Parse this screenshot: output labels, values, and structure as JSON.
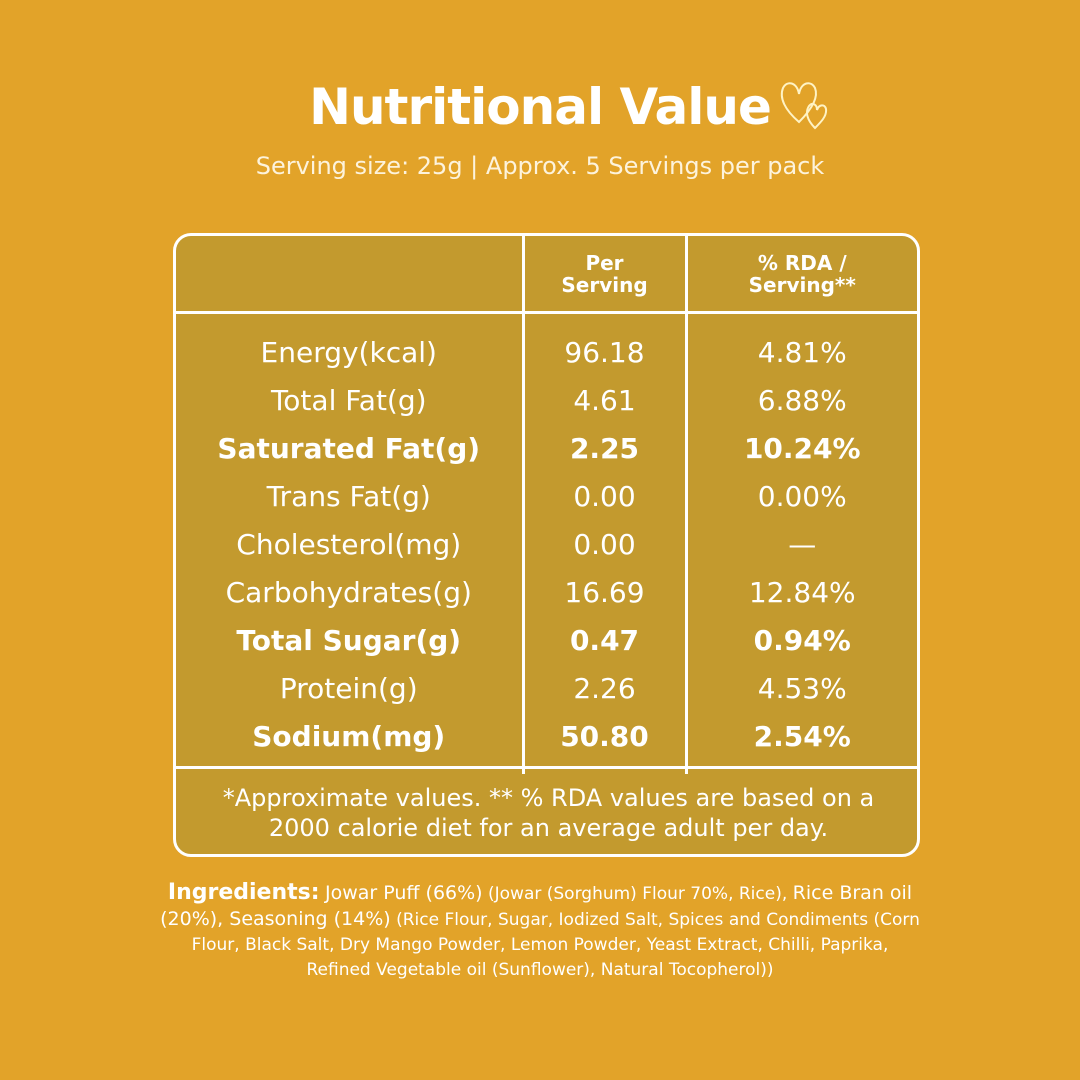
{
  "header": {
    "title": "Nutritional Value",
    "subtitle": "Serving size: 25g | Approx. 5 Servings per pack"
  },
  "table": {
    "columns": [
      "Per Serving",
      "% RDA / Serving**"
    ],
    "rows": [
      {
        "label": "Energy(kcal)",
        "per_serving": "96.18",
        "rda": "4.81%",
        "bold": false
      },
      {
        "label": "Total Fat(g)",
        "per_serving": "4.61",
        "rda": "6.88%",
        "bold": false
      },
      {
        "label": "Saturated Fat(g)",
        "per_serving": "2.25",
        "rda": "10.24%",
        "bold": true
      },
      {
        "label": "Trans Fat(g)",
        "per_serving": "0.00",
        "rda": "0.00%",
        "bold": false
      },
      {
        "label": "Cholesterol(mg)",
        "per_serving": "0.00",
        "rda": "—",
        "bold": false
      },
      {
        "label": "Carbohydrates(g)",
        "per_serving": "16.69",
        "rda": "12.84%",
        "bold": false
      },
      {
        "label": "Total Sugar(g)",
        "per_serving": "0.47",
        "rda": "0.94%",
        "bold": true
      },
      {
        "label": "Protein(g)",
        "per_serving": "2.26",
        "rda": "4.53%",
        "bold": false
      },
      {
        "label": "Sodium(mg)",
        "per_serving": "50.80",
        "rda": "2.54%",
        "bold": true
      }
    ],
    "footnote": "*Approximate values. ** % RDA values are based on a 2000 calorie diet for an average adult per day."
  },
  "ingredients": {
    "label": "Ingredients:",
    "parts": [
      {
        "text": "Jowar Puff (66%)",
        "size": "large"
      },
      {
        "text": "(Jowar (Sorghum) Flour 70%, Rice),",
        "size": "small"
      },
      {
        "text": "Rice Bran oil (20%), Seasoning (14%)",
        "size": "large"
      },
      {
        "text": "(Rice Flour, Sugar, Iodized Salt, Spices and Condiments (Corn Flour, Black Salt, Dry Mango Powder, Lemon Powder, Yeast Extract, Chilli, Paprika, Refined Vegetable oil (Sunflower), Natural Tocopherol))",
        "size": "small"
      }
    ]
  }
}
